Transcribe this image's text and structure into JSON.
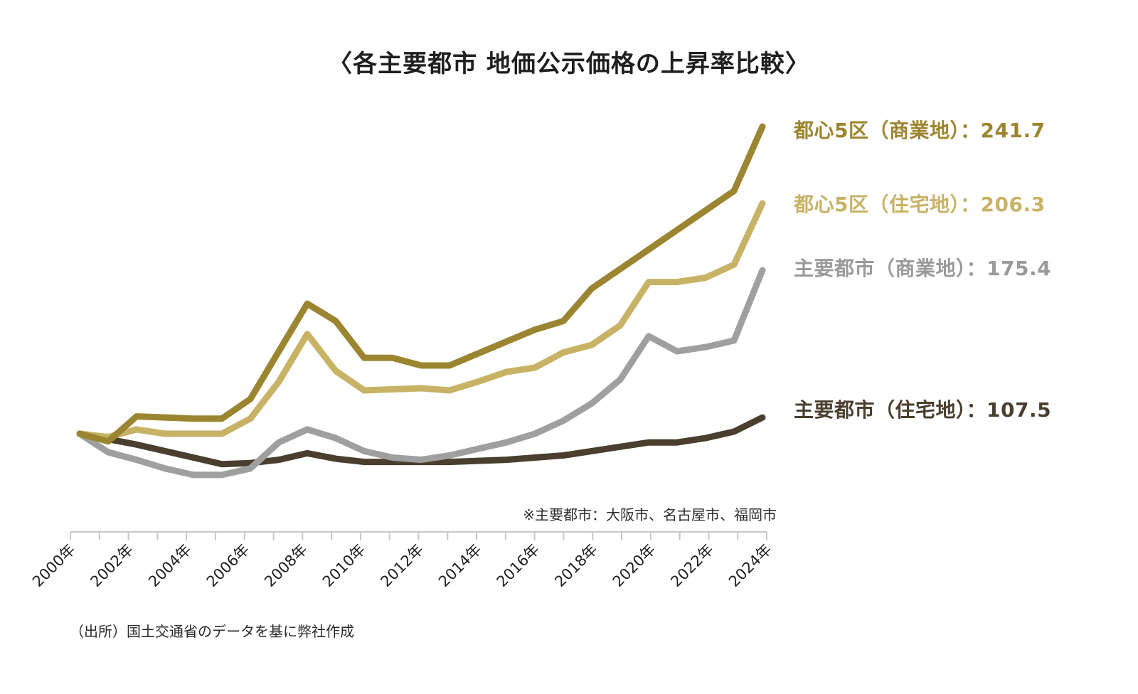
{
  "chart_data": {
    "type": "line",
    "title": "〈各主要都市 地価公示価格の上昇率比較〉",
    "x": [
      2000,
      2001,
      2002,
      2003,
      2004,
      2005,
      2006,
      2007,
      2008,
      2009,
      2010,
      2011,
      2012,
      2013,
      2014,
      2015,
      2016,
      2017,
      2018,
      2019,
      2020,
      2021,
      2022,
      2023,
      2024
    ],
    "x_tick_labels": [
      "2000年",
      "2002年",
      "2004年",
      "2006年",
      "2008年",
      "2010年",
      "2012年",
      "2014年",
      "2016年",
      "2018年",
      "2020年",
      "2022年",
      "2024年"
    ],
    "ylim": [
      80,
      250
    ],
    "grid": false,
    "series": [
      {
        "name": "都心5区（商業地）",
        "end_value": "241.7",
        "color": "#9b8530",
        "values": [
          100,
          96.5,
          108,
          107.5,
          107,
          107,
          116,
          138,
          160,
          152,
          135,
          135,
          131.5,
          131.5,
          137,
          142.5,
          148,
          152,
          167,
          176,
          185,
          194,
          203,
          212,
          241.7
        ]
      },
      {
        "name": "都心5区（住宅地）",
        "end_value": "206.3",
        "color": "#c7b266",
        "values": [
          100,
          98.5,
          102,
          100,
          100,
          100,
          107,
          124,
          146,
          129,
          120,
          120.5,
          121,
          120,
          124,
          128.5,
          130.5,
          137.5,
          141,
          150,
          170,
          170,
          172,
          178,
          206.3
        ]
      },
      {
        "name": "主要都市（商業地）",
        "end_value": "175.4",
        "color": "#a09f9f",
        "values": [
          100,
          91.5,
          88,
          84,
          81,
          81,
          84,
          96,
          102,
          98,
          92,
          89,
          88,
          90,
          93,
          96,
          100,
          106,
          114,
          125,
          145,
          138,
          140,
          143,
          175.4
        ]
      },
      {
        "name": "主要都市（住宅地）",
        "end_value": "107.5",
        "color": "#4a3f2f",
        "values": [
          100,
          97.5,
          95,
          92,
          89,
          86,
          86.5,
          88,
          91,
          88.5,
          87,
          87,
          87,
          87,
          87.5,
          88,
          89,
          90,
          92,
          94,
          96,
          96,
          98,
          101,
          107.5
        ]
      }
    ]
  },
  "note": "※主要都市：大阪市、名古屋市、福岡市",
  "source": "（出所）国土交通省のデータを基に弊社作成",
  "label_separator": "："
}
